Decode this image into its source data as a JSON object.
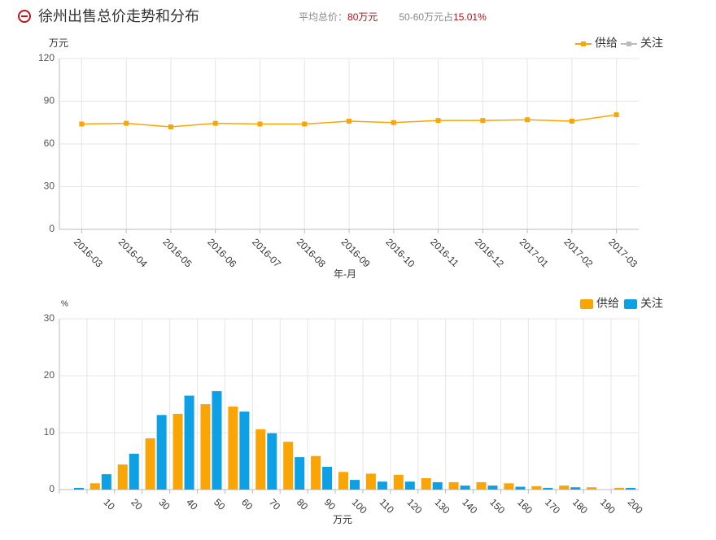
{
  "header": {
    "title": "徐州出售总价走势和分布",
    "avg_label": "平均总价：",
    "avg_value": "80万元",
    "share_label": "50-60万元占",
    "share_value": "15.01%"
  },
  "chart_data": [
    {
      "type": "line",
      "y_label": "万元",
      "x_label": "年-月",
      "categories": [
        "2016-03",
        "2016-04",
        "2016-05",
        "2016-06",
        "2016-07",
        "2016-08",
        "2016-09",
        "2016-10",
        "2016-11",
        "2016-12",
        "2017-01",
        "2017-02",
        "2017-03"
      ],
      "series": [
        {
          "name": "供给",
          "color": "#f9a505",
          "values": [
            74,
            74.5,
            72,
            74.5,
            74,
            74,
            76,
            75,
            76.5,
            76.5,
            77,
            76,
            80.5
          ]
        }
      ],
      "inactive_legend": [
        {
          "name": "关注",
          "color": "#bbbbbb"
        }
      ],
      "ylim": [
        0,
        120
      ],
      "yticks": [
        0,
        30,
        60,
        90,
        120
      ],
      "grid": true
    },
    {
      "type": "bar",
      "y_label": "%",
      "x_label": "万元",
      "categories": [
        null,
        "10",
        "20",
        "30",
        "40",
        "50",
        "60",
        "70",
        "80",
        "90",
        "100",
        "110",
        "120",
        "130",
        "140",
        "150",
        "160",
        "170",
        "180",
        "190",
        "200"
      ],
      "series": [
        {
          "name": "供给",
          "color": "#f9a505",
          "values": [
            0,
            1.1,
            4.4,
            9.0,
            13.3,
            15.0,
            14.6,
            10.6,
            8.4,
            5.9,
            3.1,
            2.8,
            2.6,
            2.0,
            1.3,
            1.3,
            1.1,
            0.6,
            0.7,
            0.4,
            0.3
          ]
        },
        {
          "name": "关注",
          "color": "#0ea0e4",
          "values": [
            0.3,
            2.7,
            6.3,
            13.1,
            16.5,
            17.3,
            13.7,
            9.9,
            5.7,
            4.0,
            1.7,
            1.4,
            1.4,
            1.3,
            0.7,
            0.7,
            0.5,
            0.3,
            0.4,
            0,
            0.3
          ]
        }
      ],
      "ylim": [
        0,
        30
      ],
      "yticks": [
        0,
        10,
        20,
        30
      ],
      "grid": true
    }
  ]
}
